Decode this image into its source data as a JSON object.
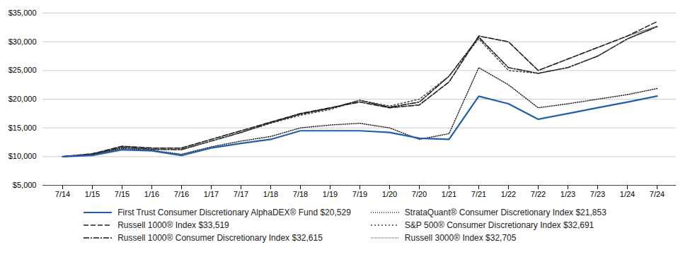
{
  "chart_data": {
    "type": "line",
    "categories": [
      "7/14",
      "1/15",
      "7/15",
      "1/16",
      "7/16",
      "1/17",
      "7/17",
      "1/18",
      "7/18",
      "1/19",
      "7/19",
      "1/20",
      "7/20",
      "1/21",
      "7/21",
      "1/22",
      "7/22",
      "1/23",
      "7/23",
      "1/24",
      "7/24"
    ],
    "series": [
      {
        "name": "First Trust Consumer Discretionary AlphaDEX® Fund $20,529",
        "color": "#1f5fad",
        "line_style": "solid",
        "values": [
          10000,
          10200,
          11200,
          11000,
          10200,
          11500,
          12300,
          13000,
          14500,
          14500,
          14500,
          14200,
          13200,
          13000,
          20500,
          19200,
          16500,
          17500,
          18500,
          19500,
          20529
        ]
      },
      {
        "name": "StrataQuant® Consumer Discretionary Index $21,853",
        "color": "#222222",
        "line_style": "dotted",
        "values": [
          10000,
          10300,
          11400,
          11100,
          10400,
          11700,
          12700,
          13500,
          15000,
          15500,
          15800,
          15000,
          13000,
          14000,
          25500,
          22500,
          18500,
          19200,
          20000,
          20800,
          21853
        ]
      },
      {
        "name": "Russell 1000® Index $33,519",
        "color": "#222222",
        "line_style": "dashed",
        "values": [
          10000,
          10500,
          11800,
          11500,
          11500,
          13000,
          14500,
          16000,
          17500,
          18500,
          19500,
          18500,
          19000,
          23000,
          31000,
          30000,
          25000,
          27000,
          29000,
          31000,
          33519
        ]
      },
      {
        "name": "S&P 500® Consumer Discretionary Index $32,691",
        "color": "#444444",
        "line_style": "loosedotted",
        "values": [
          10000,
          10400,
          11600,
          11200,
          11300,
          12700,
          14200,
          15800,
          17200,
          18200,
          19800,
          18800,
          20000,
          24000,
          30500,
          25000,
          24500,
          25500,
          27500,
          30500,
          32691
        ]
      },
      {
        "name": "Russell 1000® Consumer Discretionary Index $32,615",
        "color": "#111111",
        "line_style": "dashdot",
        "values": [
          10000,
          10400,
          11600,
          11300,
          11200,
          12700,
          14200,
          15900,
          17400,
          18400,
          19800,
          18600,
          19500,
          24000,
          30800,
          25500,
          24500,
          25500,
          27500,
          30500,
          32615
        ]
      },
      {
        "name": "Russell 3000® Index $32,705",
        "color": "#888888",
        "line_style": "densedotted",
        "values": [
          10000,
          10500,
          11800,
          11500,
          11500,
          13000,
          14500,
          16000,
          17500,
          18500,
          19500,
          18500,
          19000,
          23000,
          31000,
          30000,
          25000,
          27000,
          29000,
          31000,
          32705
        ]
      }
    ],
    "ylim": [
      5000,
      35000
    ],
    "yticks": [
      {
        "value": 5000,
        "label": "$5,000"
      },
      {
        "value": 10000,
        "label": "$10,000"
      },
      {
        "value": 15000,
        "label": "$15,000"
      },
      {
        "value": 20000,
        "label": "$20,000"
      },
      {
        "value": 25000,
        "label": "$25,000"
      },
      {
        "value": 30000,
        "label": "$30,000"
      },
      {
        "value": 35000,
        "label": "$35,000"
      }
    ],
    "grid": true,
    "legend": "bottom"
  }
}
